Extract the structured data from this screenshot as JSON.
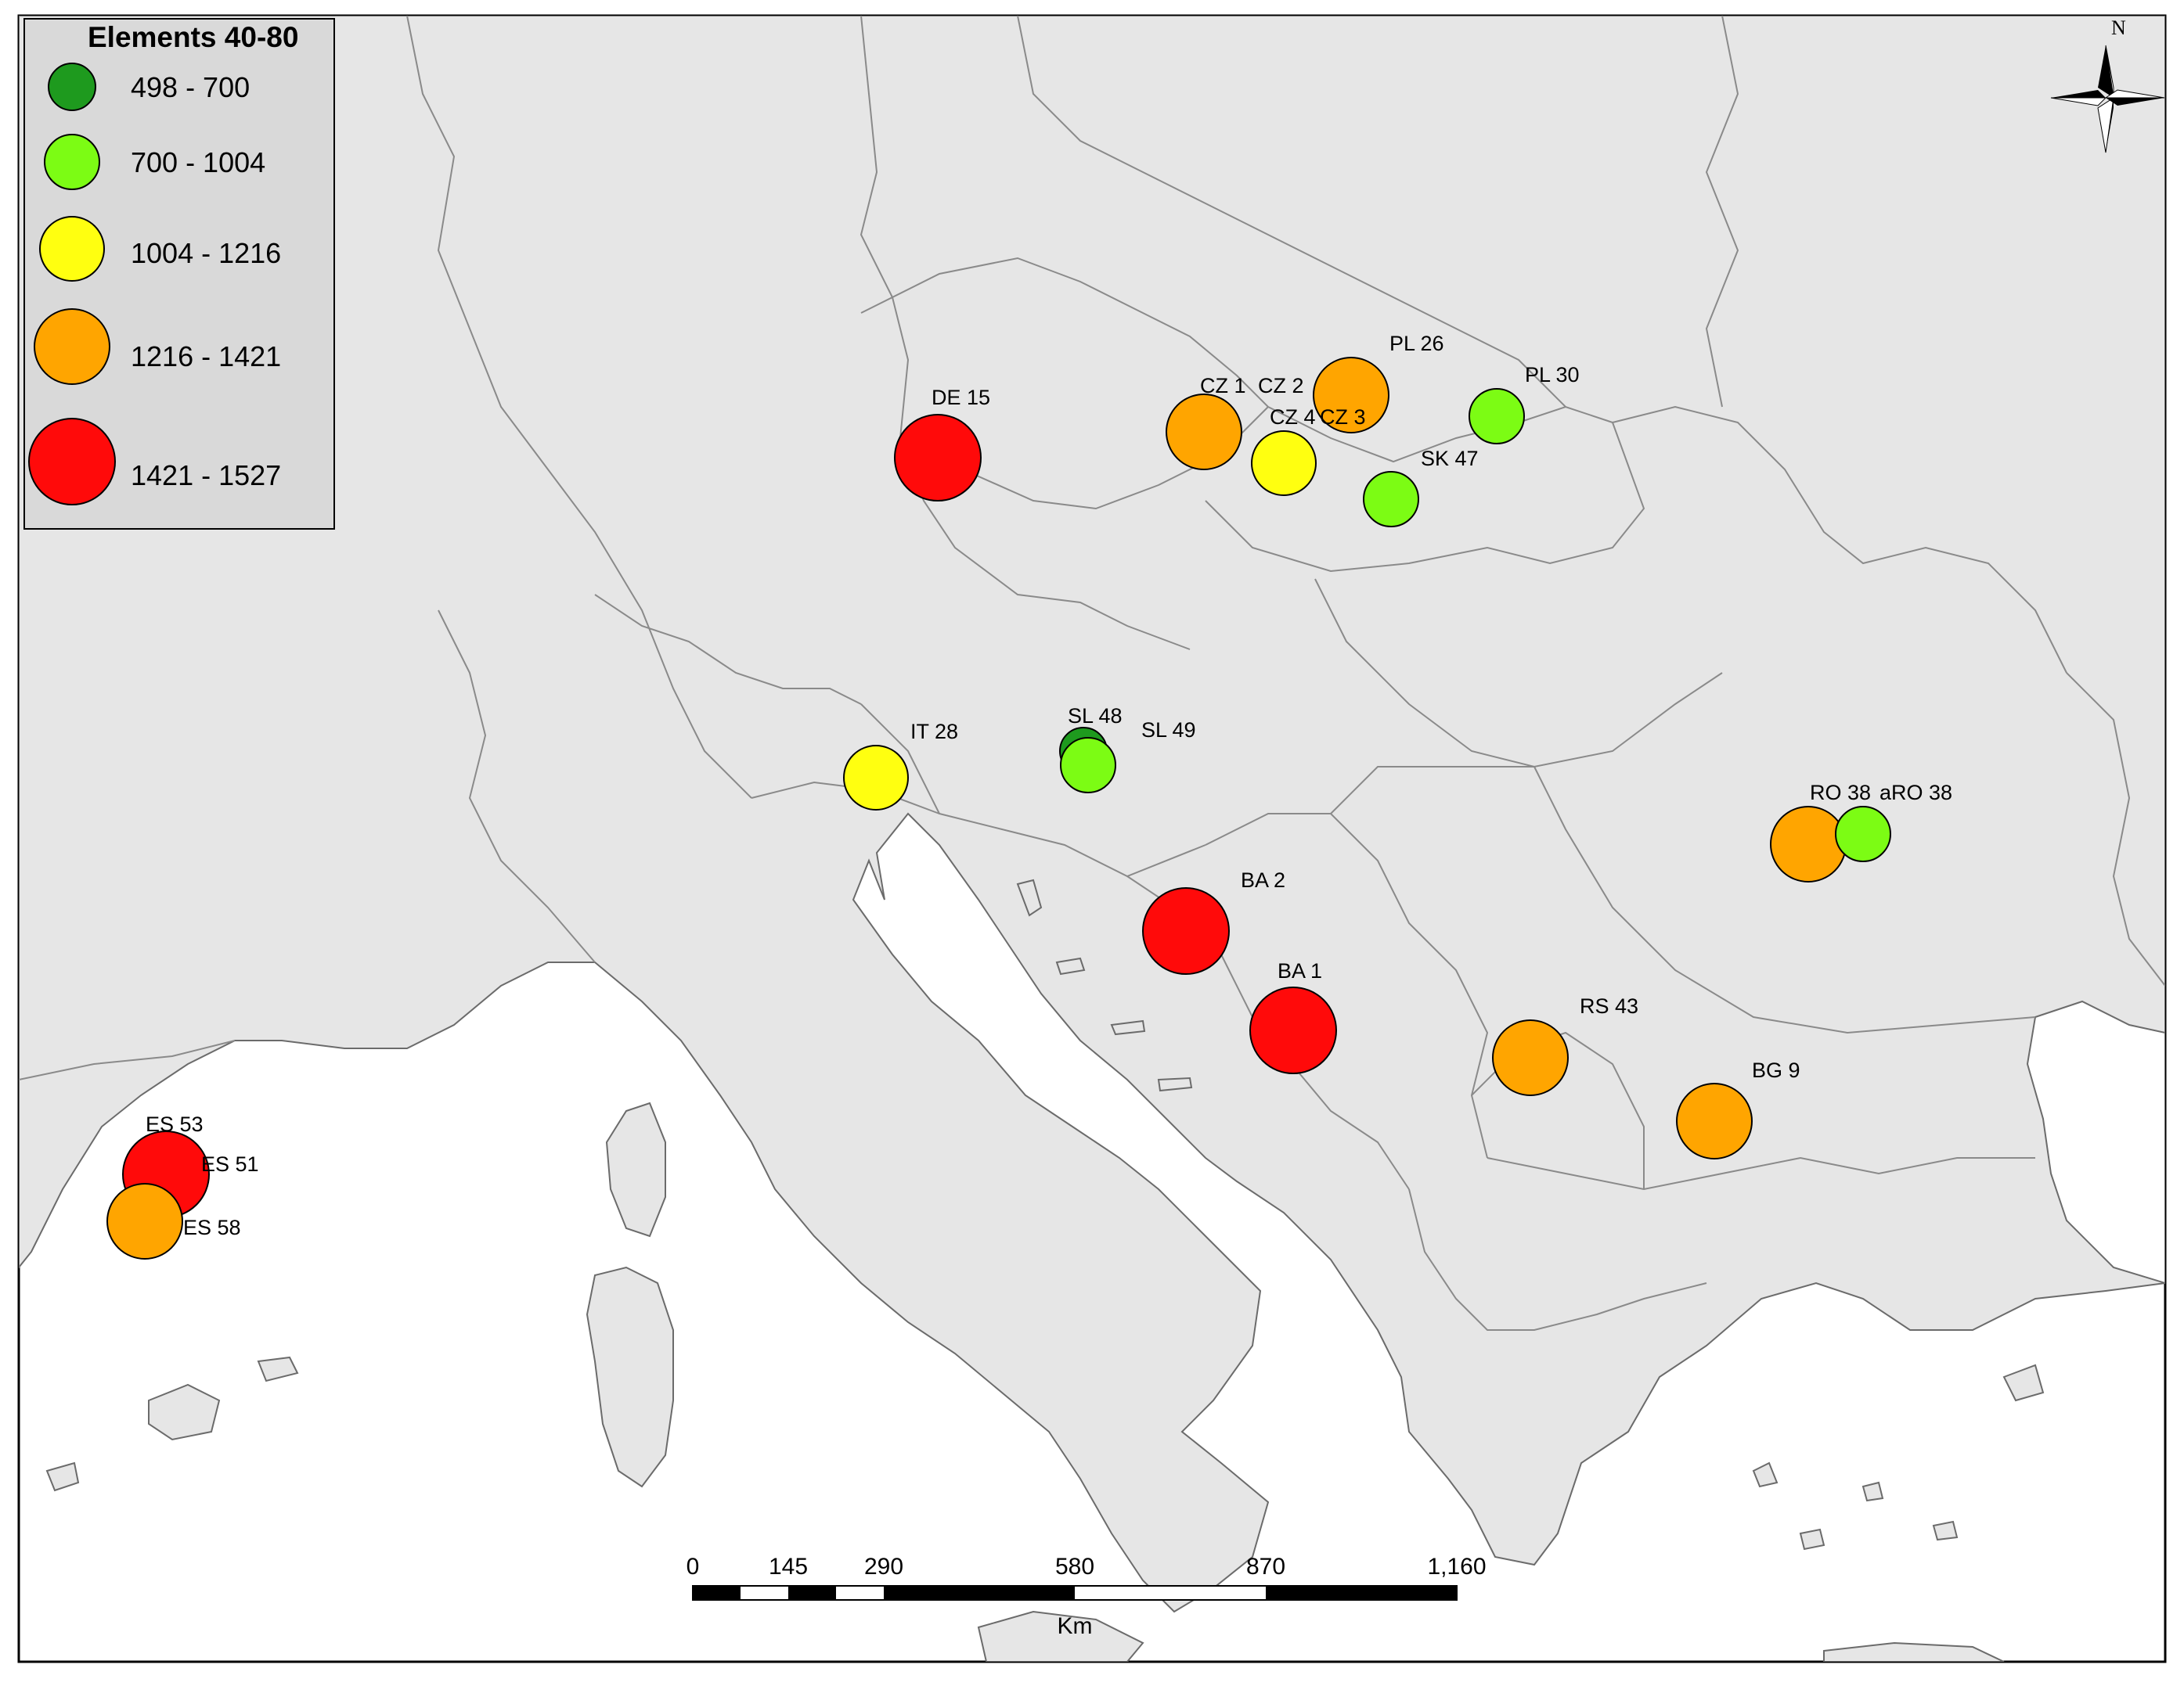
{
  "legend": {
    "title": "Elements 40-80",
    "classes": [
      {
        "label": "498 - 700",
        "color": "#1e9a1e"
      },
      {
        "label": "700 - 1004",
        "color": "#7cfc14"
      },
      {
        "label": "1004 - 1216",
        "color": "#ffff10"
      },
      {
        "label": "1216 - 1421",
        "color": "#ffa500"
      },
      {
        "label": "1421 - 1527",
        "color": "#ff0a0a"
      }
    ]
  },
  "north_arrow": {
    "label": "N"
  },
  "scale_bar": {
    "ticks": [
      "0",
      "145",
      "290",
      "580",
      "870",
      "1,160"
    ],
    "unit": "Km"
  },
  "map": {
    "land_color": "#e6e6e6",
    "sea_color": "#ffffff",
    "border_color": "#8a8a8a"
  },
  "sites": [
    {
      "label": "DE 15",
      "class": 4
    },
    {
      "label": "CZ 1",
      "class": 3
    },
    {
      "label": "CZ 2",
      "class": 3
    },
    {
      "label": "CZ 4",
      "class": 2
    },
    {
      "label": "CZ 3",
      "class": 3
    },
    {
      "label": "PL 26",
      "class": 3
    },
    {
      "label": "PL 30",
      "class": 1
    },
    {
      "label": "SK 47",
      "class": 1
    },
    {
      "label": "IT 28",
      "class": 2
    },
    {
      "label": "SL 48",
      "class": 0
    },
    {
      "label": "SL 49",
      "class": 1
    },
    {
      "label": "RO 38",
      "class": 3
    },
    {
      "label": "aRO 38",
      "class": 1
    },
    {
      "label": "BA 2",
      "class": 4
    },
    {
      "label": "BA 1",
      "class": 4
    },
    {
      "label": "RS 43",
      "class": 3
    },
    {
      "label": "BG 9",
      "class": 3
    },
    {
      "label": "ES 53",
      "class": 4
    },
    {
      "label": "ES 51",
      "class": 4
    },
    {
      "label": "ES 58",
      "class": 3
    }
  ]
}
